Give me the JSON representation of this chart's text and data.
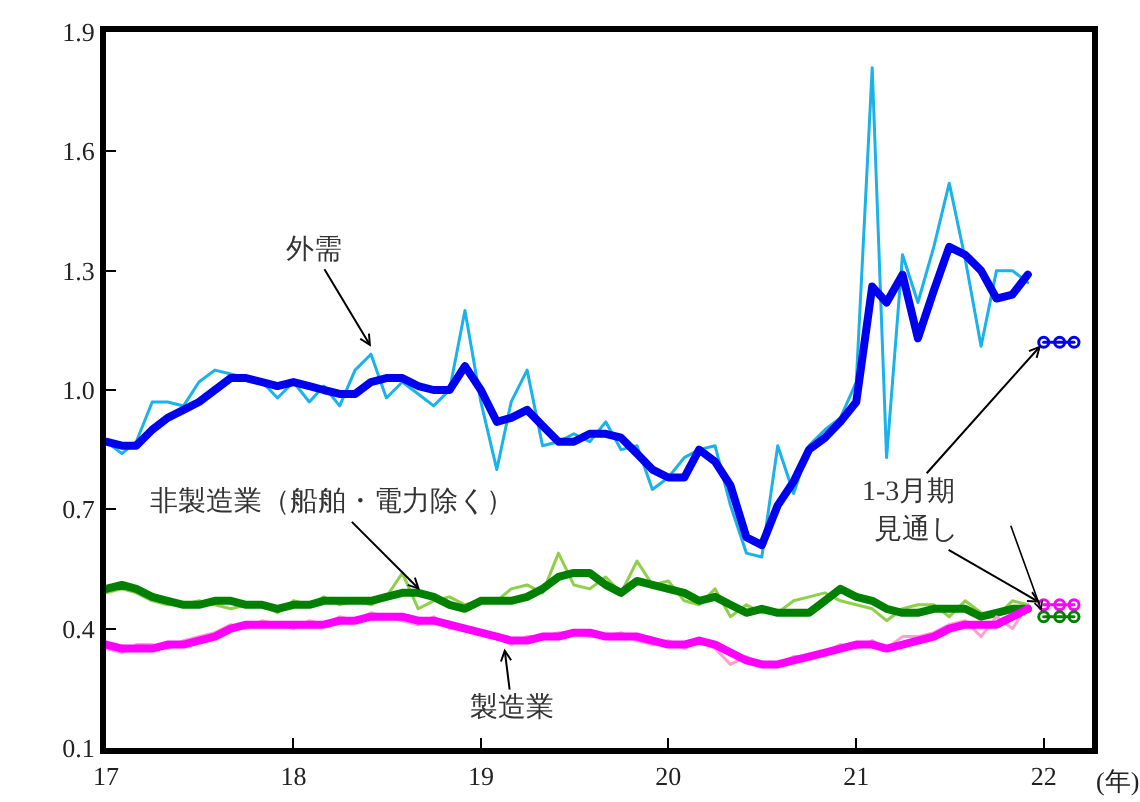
{
  "chart_data": {
    "type": "line",
    "x": [
      "2017-01",
      "2017-02",
      "2017-03",
      "2017-04",
      "2017-05",
      "2017-06",
      "2017-07",
      "2017-08",
      "2017-09",
      "2017-10",
      "2017-11",
      "2017-12",
      "2018-01",
      "2018-02",
      "2018-03",
      "2018-04",
      "2018-05",
      "2018-06",
      "2018-07",
      "2018-08",
      "2018-09",
      "2018-10",
      "2018-11",
      "2018-12",
      "2019-01",
      "2019-02",
      "2019-03",
      "2019-04",
      "2019-05",
      "2019-06",
      "2019-07",
      "2019-08",
      "2019-09",
      "2019-10",
      "2019-11",
      "2019-12",
      "2020-01",
      "2020-02",
      "2020-03",
      "2020-04",
      "2020-05",
      "2020-06",
      "2020-07",
      "2020-08",
      "2020-09",
      "2020-10",
      "2020-11",
      "2020-12",
      "2021-01",
      "2021-02",
      "2021-03",
      "2021-04",
      "2021-05",
      "2021-06",
      "2021-07",
      "2021-08",
      "2021-09",
      "2021-10",
      "2021-11",
      "2021-12"
    ],
    "series": [
      {
        "color": "#1ab2ea",
        "values": [
          0.87,
          0.84,
          0.87,
          0.97,
          0.97,
          0.96,
          1.02,
          1.05,
          1.04,
          1.03,
          1.02,
          0.98,
          1.02,
          0.97,
          1.01,
          0.96,
          1.05,
          1.09,
          0.98,
          1.02,
          0.99,
          0.96,
          1.0,
          1.2,
          0.97,
          0.8,
          0.97,
          1.05,
          0.86,
          0.87,
          0.89,
          0.87,
          0.92,
          0.85,
          0.86,
          0.75,
          0.78,
          0.83,
          0.85,
          0.86,
          0.71,
          0.59,
          0.58,
          0.86,
          0.74,
          0.86,
          0.9,
          0.93,
          1.02,
          1.81,
          0.83,
          1.34,
          1.22,
          1.36,
          1.52,
          1.33,
          1.11,
          1.3,
          1.3,
          1.27
        ]
      },
      {
        "color": "#0000f0",
        "values": [
          0.87,
          0.86,
          0.86,
          0.9,
          0.93,
          0.95,
          0.97,
          1.0,
          1.03,
          1.03,
          1.02,
          1.01,
          1.02,
          1.01,
          1.0,
          0.99,
          0.99,
          1.02,
          1.03,
          1.03,
          1.01,
          1.0,
          1.0,
          1.06,
          1.0,
          0.92,
          0.93,
          0.95,
          0.91,
          0.87,
          0.87,
          0.89,
          0.89,
          0.88,
          0.84,
          0.8,
          0.78,
          0.78,
          0.85,
          0.82,
          0.76,
          0.63,
          0.61,
          0.71,
          0.77,
          0.85,
          0.88,
          0.92,
          0.97,
          1.26,
          1.22,
          1.29,
          1.13,
          1.25,
          1.36,
          1.34,
          1.3,
          1.23,
          1.24,
          1.29
        ]
      },
      {
        "color": "#8ed04a",
        "values": [
          0.49,
          0.5,
          0.49,
          0.47,
          0.46,
          0.46,
          0.47,
          0.46,
          0.45,
          0.46,
          0.46,
          0.44,
          0.47,
          0.46,
          0.48,
          0.46,
          0.47,
          0.46,
          0.48,
          0.54,
          0.45,
          0.47,
          0.48,
          0.46,
          0.47,
          0.47,
          0.5,
          0.51,
          0.49,
          0.59,
          0.51,
          0.5,
          0.53,
          0.49,
          0.57,
          0.51,
          0.52,
          0.47,
          0.46,
          0.5,
          0.43,
          0.46,
          0.44,
          0.44,
          0.47,
          0.48,
          0.49,
          0.47,
          0.46,
          0.45,
          0.42,
          0.45,
          0.46,
          0.46,
          0.43,
          0.47,
          0.44,
          0.43,
          0.47,
          0.46
        ]
      },
      {
        "color": "#008000",
        "values": [
          0.5,
          0.51,
          0.5,
          0.48,
          0.47,
          0.46,
          0.46,
          0.47,
          0.47,
          0.46,
          0.46,
          0.45,
          0.46,
          0.46,
          0.47,
          0.47,
          0.47,
          0.47,
          0.48,
          0.49,
          0.49,
          0.48,
          0.46,
          0.45,
          0.47,
          0.47,
          0.47,
          0.48,
          0.5,
          0.53,
          0.54,
          0.54,
          0.51,
          0.49,
          0.52,
          0.51,
          0.5,
          0.49,
          0.47,
          0.48,
          0.46,
          0.44,
          0.45,
          0.44,
          0.44,
          0.44,
          0.47,
          0.5,
          0.48,
          0.47,
          0.45,
          0.44,
          0.44,
          0.45,
          0.45,
          0.45,
          0.43,
          0.44,
          0.45,
          0.45
        ]
      },
      {
        "color": "#ff9fcf",
        "values": [
          0.35,
          0.34,
          0.36,
          0.36,
          0.35,
          0.37,
          0.38,
          0.39,
          0.41,
          0.4,
          0.42,
          0.41,
          0.4,
          0.42,
          0.41,
          0.43,
          0.42,
          0.44,
          0.43,
          0.42,
          0.41,
          0.43,
          0.4,
          0.4,
          0.39,
          0.38,
          0.36,
          0.38,
          0.38,
          0.39,
          0.39,
          0.38,
          0.38,
          0.39,
          0.37,
          0.36,
          0.37,
          0.35,
          0.37,
          0.35,
          0.31,
          0.33,
          0.31,
          0.31,
          0.33,
          0.33,
          0.34,
          0.36,
          0.35,
          0.37,
          0.35,
          0.38,
          0.38,
          0.39,
          0.41,
          0.42,
          0.38,
          0.43,
          0.4,
          0.46
        ]
      },
      {
        "color": "#ff00ff",
        "values": [
          0.36,
          0.35,
          0.35,
          0.35,
          0.36,
          0.36,
          0.37,
          0.38,
          0.4,
          0.41,
          0.41,
          0.41,
          0.41,
          0.41,
          0.41,
          0.42,
          0.42,
          0.43,
          0.43,
          0.43,
          0.42,
          0.42,
          0.41,
          0.4,
          0.39,
          0.38,
          0.37,
          0.37,
          0.38,
          0.38,
          0.39,
          0.39,
          0.38,
          0.38,
          0.38,
          0.37,
          0.36,
          0.36,
          0.37,
          0.36,
          0.34,
          0.32,
          0.31,
          0.31,
          0.32,
          0.33,
          0.34,
          0.35,
          0.36,
          0.36,
          0.35,
          0.36,
          0.37,
          0.38,
          0.4,
          0.41,
          0.41,
          0.41,
          0.43,
          0.45
        ]
      },
      {
        "color": "#0000f0",
        "marker": "circle",
        "x": [
          "2022-01",
          "2022-02",
          "2022-03"
        ],
        "values": [
          1.12,
          1.12,
          1.12
        ]
      },
      {
        "color": "#ff00ff",
        "marker": "circle",
        "x": [
          "2022-01",
          "2022-02",
          "2022-03"
        ],
        "values": [
          0.46,
          0.46,
          0.46
        ]
      },
      {
        "color": "#008000",
        "marker": "circle",
        "x": [
          "2022-01",
          "2022-02",
          "2022-03"
        ],
        "values": [
          0.43,
          0.43,
          0.43
        ]
      }
    ],
    "xlim": [
      "2017-01-01",
      "2022-04-05"
    ],
    "xticks": [
      {
        "value": "2017",
        "label": "17"
      },
      {
        "value": "2018",
        "label": "18"
      },
      {
        "value": "2019",
        "label": "19"
      },
      {
        "value": "2020",
        "label": "20"
      },
      {
        "value": "2021",
        "label": "21"
      },
      {
        "value": "2022",
        "label": "22"
      }
    ],
    "ylim": [
      0.1,
      1.9
    ],
    "yticks": [
      0.1,
      0.4,
      0.7,
      {
        "value": 1,
        "label": "1.0"
      },
      1.3,
      1.6,
      1.9
    ],
    "grid": false,
    "marker": "none",
    "line_style": "solid",
    "annotations": [
      {
        "text": "外需",
        "x": "2018-06-05",
        "y": 1.1
      },
      {
        "text": "非製造業（船舶・電力除く）",
        "x": "2018-09-10",
        "y": 0.49
      },
      {
        "text": "製造業",
        "x": "2019-02-15",
        "y": 0.36
      },
      {
        "text": "1-3月期",
        "x": "2022-01",
        "y": 1.12
      },
      {
        "text": "見通し",
        "x": "2022-01",
        "y": 0.46
      },
      "(年)"
    ]
  }
}
